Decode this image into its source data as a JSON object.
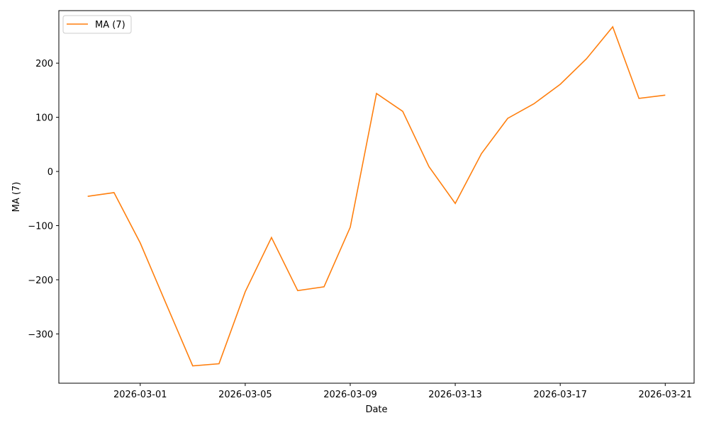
{
  "chart_data": {
    "type": "line",
    "title": "",
    "xlabel": "Date",
    "ylabel": "MA (7)",
    "x": [
      "2026-02-27",
      "2026-02-28",
      "2026-03-01",
      "2026-03-02",
      "2026-03-03",
      "2026-03-04",
      "2026-03-05",
      "2026-03-06",
      "2026-03-07",
      "2026-03-08",
      "2026-03-09",
      "2026-03-10",
      "2026-03-11",
      "2026-03-12",
      "2026-03-13",
      "2026-03-14",
      "2026-03-15",
      "2026-03-16",
      "2026-03-17",
      "2026-03-18",
      "2026-03-19",
      "2026-03-20",
      "2026-03-21"
    ],
    "series": [
      {
        "name": "MA (7)",
        "color": "#ff7f0e",
        "values": [
          -46,
          -39,
          -132,
          -246,
          -359,
          -355,
          -222,
          -122,
          -220,
          -213,
          -103,
          144,
          111,
          9,
          -59,
          33,
          98,
          125,
          161,
          208,
          267,
          135,
          141
        ]
      }
    ],
    "xticks": [
      "2026-03-01",
      "2026-03-05",
      "2026-03-09",
      "2026-03-13",
      "2026-03-17",
      "2026-03-21"
    ],
    "yticks": [
      -300,
      -200,
      -100,
      0,
      100,
      200
    ],
    "ylim": [
      -391,
      297
    ],
    "grid": false,
    "legend": "upper left"
  }
}
